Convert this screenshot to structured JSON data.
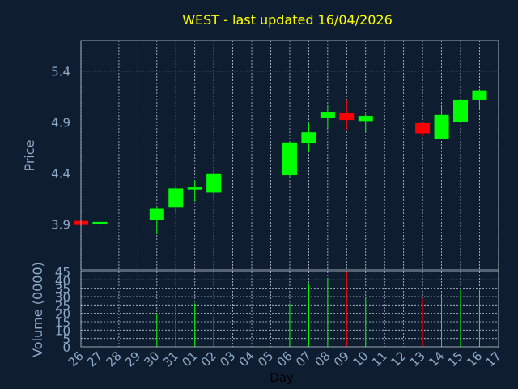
{
  "chart_data": [
    {
      "type": "candlestick",
      "title": "WEST - last updated 16/04/2026",
      "xlabel": "Day",
      "ylabel": "Price",
      "ylim": [
        3.45,
        5.7
      ],
      "yticks": [
        "3.9",
        "4.4",
        "4.9",
        "5.4"
      ],
      "ytick_values": [
        3.9,
        4.4,
        4.9,
        5.4
      ],
      "grid": true,
      "x": [
        "26",
        "27",
        "28",
        "29",
        "30",
        "31",
        "01",
        "02",
        "03",
        "04",
        "05",
        "06",
        "07",
        "08",
        "09",
        "10",
        "11",
        "12",
        "13",
        "14",
        "15",
        "16",
        "17"
      ],
      "candles": [
        {
          "x": "26",
          "open": 3.93,
          "high": 3.93,
          "low": 3.89,
          "close": 3.89
        },
        {
          "x": "27",
          "open": 3.9,
          "high": 3.92,
          "low": 3.8,
          "close": 3.92
        },
        {
          "x": "30",
          "open": 3.94,
          "high": 4.07,
          "low": 3.8,
          "close": 4.05
        },
        {
          "x": "31",
          "open": 4.06,
          "high": 4.27,
          "low": 4.0,
          "close": 4.25
        },
        {
          "x": "01",
          "open": 4.24,
          "high": 4.33,
          "low": 4.12,
          "close": 4.26
        },
        {
          "x": "02",
          "open": 4.21,
          "high": 4.41,
          "low": 4.17,
          "close": 4.39
        },
        {
          "x": "06",
          "open": 4.38,
          "high": 4.71,
          "low": 4.36,
          "close": 4.7
        },
        {
          "x": "07",
          "open": 4.69,
          "high": 4.89,
          "low": 4.6,
          "close": 4.8
        },
        {
          "x": "08",
          "open": 4.94,
          "high": 5.06,
          "low": 4.84,
          "close": 5.0
        },
        {
          "x": "09",
          "open": 4.99,
          "high": 5.12,
          "low": 4.82,
          "close": 4.92
        },
        {
          "x": "10",
          "open": 4.91,
          "high": 4.98,
          "low": 4.8,
          "close": 4.96
        },
        {
          "x": "13",
          "open": 4.89,
          "high": 4.89,
          "low": 4.76,
          "close": 4.79
        },
        {
          "x": "14",
          "open": 4.73,
          "high": 5.05,
          "low": 4.73,
          "close": 4.97
        },
        {
          "x": "15",
          "open": 4.9,
          "high": 5.12,
          "low": 4.9,
          "close": 5.12
        },
        {
          "x": "16",
          "open": 5.12,
          "high": 5.22,
          "low": 5.03,
          "close": 5.21
        }
      ]
    },
    {
      "type": "bar",
      "ylabel": "Volume (0000)",
      "xlabel": "Day",
      "ylim": [
        0,
        45
      ],
      "yticks": [
        "0",
        "5",
        "10",
        "15",
        "20",
        "25",
        "30",
        "35",
        "40",
        "45"
      ],
      "ytick_values": [
        0,
        5,
        10,
        15,
        20,
        25,
        30,
        35,
        40,
        45
      ],
      "categories": [
        "26",
        "27",
        "30",
        "31",
        "01",
        "02",
        "06",
        "07",
        "08",
        "09",
        "10",
        "13",
        "14",
        "15",
        "16"
      ],
      "values": [
        0.5,
        19,
        20,
        25,
        26,
        18,
        26,
        38,
        41,
        45,
        29,
        29,
        30,
        34,
        34
      ],
      "direction": [
        "down",
        "up",
        "up",
        "up",
        "up",
        "up",
        "up",
        "up",
        "up",
        "down",
        "up",
        "down",
        "up",
        "up",
        "up"
      ]
    }
  ],
  "colors": {
    "background": "#0e1e30",
    "axis_text": "#8fa9c8",
    "title": "#ffff00",
    "grid": "#c0c8d8",
    "up": "#00ff00",
    "down": "#ff0000",
    "xlabel": "#000000"
  }
}
